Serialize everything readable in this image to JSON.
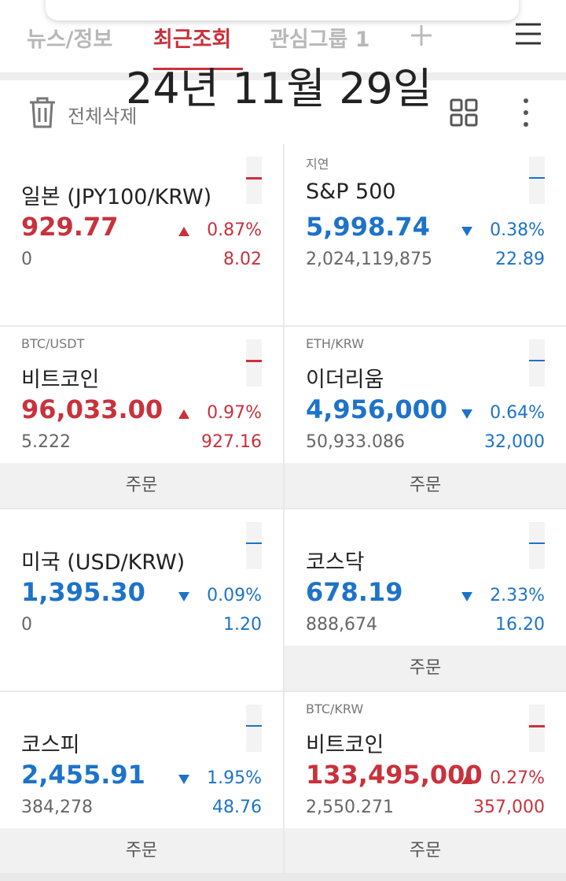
{
  "tabs": [
    "뉴스/정보",
    "최근조회",
    "관심그룹 1"
  ],
  "date_overlay": "24년 11월 29일",
  "toolbar": {
    "delete_all": "전체삭제"
  },
  "cards": [
    {
      "name": "일본 (JPY100/KRW)",
      "price": "929.77",
      "change_rate": "0.87%",
      "volume": "0",
      "change": "8.02",
      "trend": "up"
    },
    {
      "tag": "지연",
      "name": "S&P 500",
      "price": "5,998.74",
      "change_rate": "0.38%",
      "volume": "2,024,119,875",
      "change": "22.89",
      "trend": "down"
    },
    {
      "tag": "BTC/USDT",
      "name": "비트코인",
      "price": "96,033.00",
      "change_rate": "0.97%",
      "volume": "5.222",
      "change": "927.16",
      "trend": "up",
      "order_button": "주문"
    },
    {
      "tag": "ETH/KRW",
      "name": "이더리움",
      "price": "4,956,000",
      "change_rate": "0.64%",
      "volume": "50,933.086",
      "change": "32,000",
      "trend": "down",
      "order_button": "주문"
    },
    {
      "name": "미국 (USD/KRW)",
      "price": "1,395.30",
      "change_rate": "0.09%",
      "volume": "0",
      "change": "1.20",
      "trend": "down"
    },
    {
      "name": "코스닥",
      "price": "678.19",
      "change_rate": "2.33%",
      "volume": "888,674",
      "change": "16.20",
      "trend": "down",
      "order_button": "주문"
    },
    {
      "name": "코스피",
      "price": "2,455.91",
      "change_rate": "1.95%",
      "volume": "384,278",
      "change": "48.76",
      "trend": "down",
      "order_button": "주문"
    },
    {
      "tag": "BTC/KRW",
      "name": "비트코인",
      "price": "133,495,000",
      "change_rate": "0.27%",
      "volume": "2,550.271",
      "change": "357,000",
      "trend": "up",
      "order_button": "주문"
    }
  ]
}
